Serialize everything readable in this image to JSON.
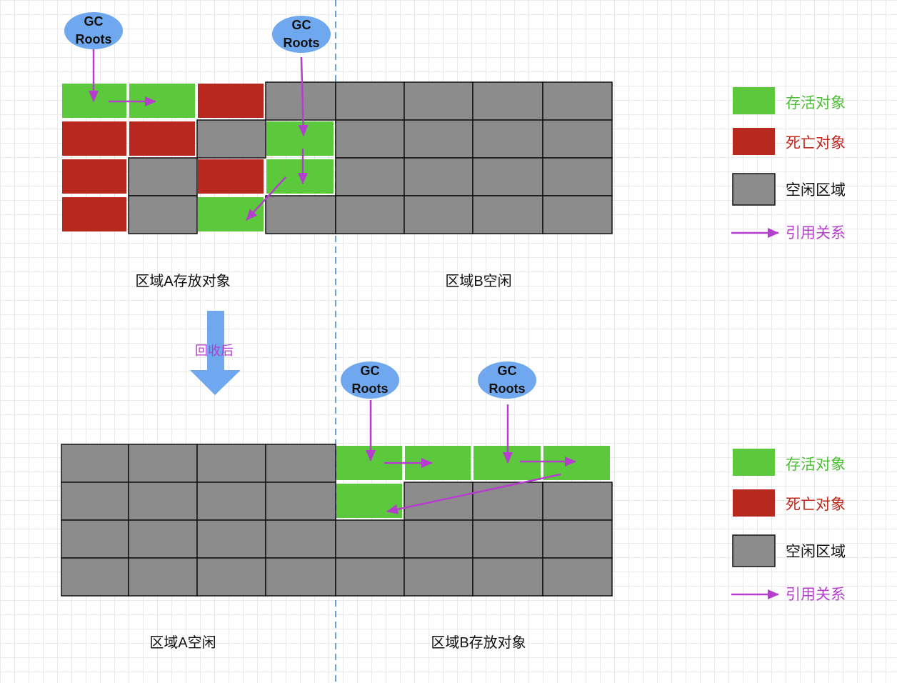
{
  "colors": {
    "live": "#5cc83c",
    "dead": "#b8281e",
    "free": "#8c8c8c",
    "reference": "#b63ecf",
    "gc_root": "#6fa8ee",
    "divider": "#6fa0d8"
  },
  "gc_root_label": {
    "line1": "GC",
    "line2": "Roots"
  },
  "top": {
    "region_a_label": "区域A存放对象",
    "region_b_label": "区域B空闲",
    "grid": [
      [
        "live",
        "live",
        "dead",
        "free",
        "free",
        "free",
        "free",
        "free"
      ],
      [
        "dead",
        "dead",
        "free",
        "live",
        "free",
        "free",
        "free",
        "free"
      ],
      [
        "dead",
        "free",
        "dead",
        "live",
        "free",
        "free",
        "free",
        "free"
      ],
      [
        "dead",
        "free",
        "live",
        "free",
        "free",
        "free",
        "free",
        "free"
      ]
    ]
  },
  "transition": {
    "label": "回收后",
    "icon": "arrow-down-icon"
  },
  "bottom": {
    "region_a_label": "区域A空闲",
    "region_b_label": "区域B存放对象",
    "grid": [
      [
        "free",
        "free",
        "free",
        "free",
        "live",
        "live",
        "live",
        "live"
      ],
      [
        "free",
        "free",
        "free",
        "free",
        "live",
        "free",
        "free",
        "free"
      ],
      [
        "free",
        "free",
        "free",
        "free",
        "free",
        "free",
        "free",
        "free"
      ],
      [
        "free",
        "free",
        "free",
        "free",
        "free",
        "free",
        "free",
        "free"
      ]
    ]
  },
  "legend": {
    "live": "存活对象",
    "dead": "死亡对象",
    "free": "空闲区域",
    "reference": "引用关系"
  }
}
